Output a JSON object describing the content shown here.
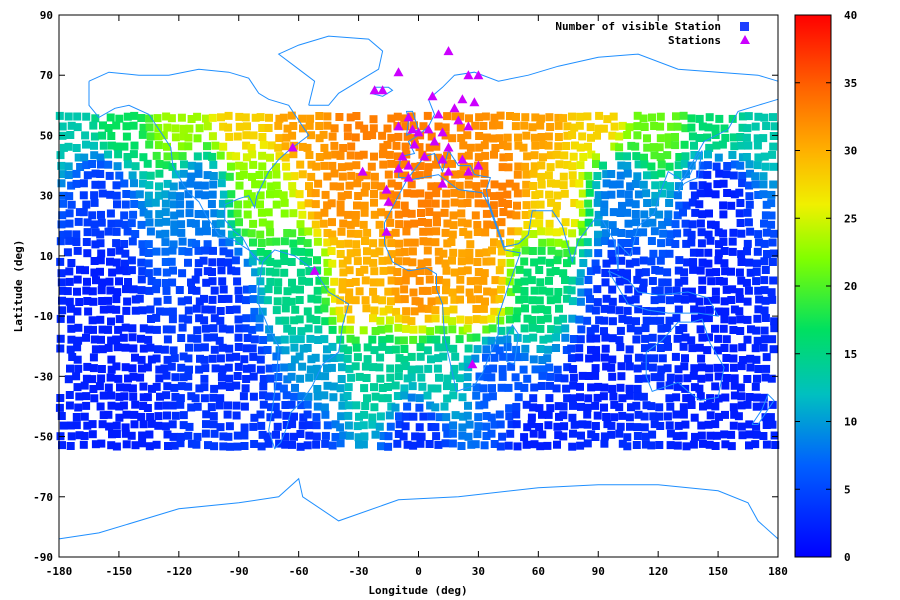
{
  "chart_data": {
    "type": "scatter",
    "title": "",
    "xlabel": "Longitude (deg)",
    "ylabel": "Latitude (deg)",
    "xlim": [
      -180,
      180
    ],
    "ylim": [
      -90,
      90
    ],
    "xticks": [
      -180,
      -150,
      -120,
      -90,
      -60,
      -30,
      0,
      30,
      60,
      90,
      120,
      150,
      180
    ],
    "yticks": [
      -90,
      -70,
      -50,
      -30,
      -10,
      10,
      30,
      50,
      70,
      90
    ],
    "grid": false,
    "legend_position": "top-right",
    "legend": [
      {
        "label": "Number of visible Station",
        "marker": "square",
        "color": "#1f3fff"
      },
      {
        "label": "Stations",
        "marker": "triangle",
        "color": "#cc00ff"
      }
    ],
    "colorbar": {
      "min": 0,
      "max": 40,
      "ticks": [
        0,
        5,
        10,
        15,
        20,
        25,
        30,
        35,
        40
      ],
      "colormap": [
        "#0000ff",
        "#00a0ff",
        "#00e060",
        "#80ff00",
        "#ffe000",
        "#ff8000",
        "#ff0000"
      ]
    },
    "grid_cells": {
      "lon_range": [
        -180,
        180
      ],
      "lat_range": [
        -56,
        56
      ],
      "description_units": "number of visible stations per grid cell",
      "samples": [
        {
          "lon": -175,
          "lat": 55,
          "value": 13
        },
        {
          "lon": -150,
          "lat": 55,
          "value": 17
        },
        {
          "lon": -120,
          "lat": 55,
          "value": 23
        },
        {
          "lon": -90,
          "lat": 55,
          "value": 28
        },
        {
          "lon": -60,
          "lat": 55,
          "value": 31
        },
        {
          "lon": -30,
          "lat": 55,
          "value": 33
        },
        {
          "lon": 0,
          "lat": 55,
          "value": 33
        },
        {
          "lon": 30,
          "lat": 55,
          "value": 32
        },
        {
          "lon": 60,
          "lat": 55,
          "value": 31
        },
        {
          "lon": 90,
          "lat": 55,
          "value": 28
        },
        {
          "lon": 120,
          "lat": 55,
          "value": 21
        },
        {
          "lon": 150,
          "lat": 55,
          "value": 16
        },
        {
          "lon": 175,
          "lat": 55,
          "value": 13
        },
        {
          "lon": -160,
          "lat": 30,
          "value": 4
        },
        {
          "lon": -110,
          "lat": 30,
          "value": 8
        },
        {
          "lon": -80,
          "lat": 30,
          "value": 22
        },
        {
          "lon": -40,
          "lat": 30,
          "value": 32
        },
        {
          "lon": 0,
          "lat": 30,
          "value": 33
        },
        {
          "lon": 40,
          "lat": 30,
          "value": 33
        },
        {
          "lon": 70,
          "lat": 30,
          "value": 28
        },
        {
          "lon": 100,
          "lat": 30,
          "value": 8
        },
        {
          "lon": 150,
          "lat": 30,
          "value": 2
        },
        {
          "lon": -160,
          "lat": 0,
          "value": 2
        },
        {
          "lon": -100,
          "lat": 0,
          "value": 3
        },
        {
          "lon": -60,
          "lat": 0,
          "value": 15
        },
        {
          "lon": -30,
          "lat": 0,
          "value": 30
        },
        {
          "lon": 0,
          "lat": 0,
          "value": 32
        },
        {
          "lon": 30,
          "lat": 0,
          "value": 31
        },
        {
          "lon": 60,
          "lat": 0,
          "value": 16
        },
        {
          "lon": 100,
          "lat": 0,
          "value": 3
        },
        {
          "lon": 150,
          "lat": 0,
          "value": 2
        },
        {
          "lon": -150,
          "lat": -30,
          "value": 2
        },
        {
          "lon": -90,
          "lat": -30,
          "value": 3
        },
        {
          "lon": -50,
          "lat": -30,
          "value": 10
        },
        {
          "lon": -20,
          "lat": -30,
          "value": 14
        },
        {
          "lon": 10,
          "lat": -30,
          "value": 13
        },
        {
          "lon": 40,
          "lat": -30,
          "value": 6
        },
        {
          "lon": 90,
          "lat": -30,
          "value": 2
        },
        {
          "lon": 150,
          "lat": -30,
          "value": 2
        },
        {
          "lon": -150,
          "lat": -50,
          "value": 2
        },
        {
          "lon": -60,
          "lat": -50,
          "value": 3
        },
        {
          "lon": 0,
          "lat": -50,
          "value": 3
        },
        {
          "lon": 60,
          "lat": -50,
          "value": 2
        },
        {
          "lon": 150,
          "lat": -50,
          "value": 2
        }
      ]
    },
    "stations": [
      {
        "lon": 15,
        "lat": 78
      },
      {
        "lon": 25,
        "lat": 70
      },
      {
        "lon": 30,
        "lat": 70
      },
      {
        "lon": -10,
        "lat": 71
      },
      {
        "lon": -22,
        "lat": 65
      },
      {
        "lon": -18,
        "lat": 65
      },
      {
        "lon": 7,
        "lat": 63
      },
      {
        "lon": 22,
        "lat": 62
      },
      {
        "lon": 28,
        "lat": 61
      },
      {
        "lon": 10,
        "lat": 57
      },
      {
        "lon": 18,
        "lat": 59
      },
      {
        "lon": -5,
        "lat": 56
      },
      {
        "lon": 20,
        "lat": 55
      },
      {
        "lon": 25,
        "lat": 53
      },
      {
        "lon": -10,
        "lat": 53
      },
      {
        "lon": -3,
        "lat": 52
      },
      {
        "lon": 0,
        "lat": 51
      },
      {
        "lon": 5,
        "lat": 52
      },
      {
        "lon": 12,
        "lat": 51
      },
      {
        "lon": 8,
        "lat": 48
      },
      {
        "lon": -2,
        "lat": 47
      },
      {
        "lon": 15,
        "lat": 46
      },
      {
        "lon": -8,
        "lat": 43
      },
      {
        "lon": 3,
        "lat": 43
      },
      {
        "lon": 12,
        "lat": 42
      },
      {
        "lon": 22,
        "lat": 42
      },
      {
        "lon": 30,
        "lat": 40
      },
      {
        "lon": -5,
        "lat": 40
      },
      {
        "lon": -10,
        "lat": 39
      },
      {
        "lon": 15,
        "lat": 38
      },
      {
        "lon": 25,
        "lat": 38
      },
      {
        "lon": -28,
        "lat": 38
      },
      {
        "lon": -5,
        "lat": 36
      },
      {
        "lon": 12,
        "lat": 34
      },
      {
        "lon": -16,
        "lat": 32
      },
      {
        "lon": -15,
        "lat": 28
      },
      {
        "lon": -16,
        "lat": 18
      },
      {
        "lon": -63,
        "lat": 46
      },
      {
        "lon": -52,
        "lat": 5
      },
      {
        "lon": 27,
        "lat": -26
      }
    ]
  }
}
